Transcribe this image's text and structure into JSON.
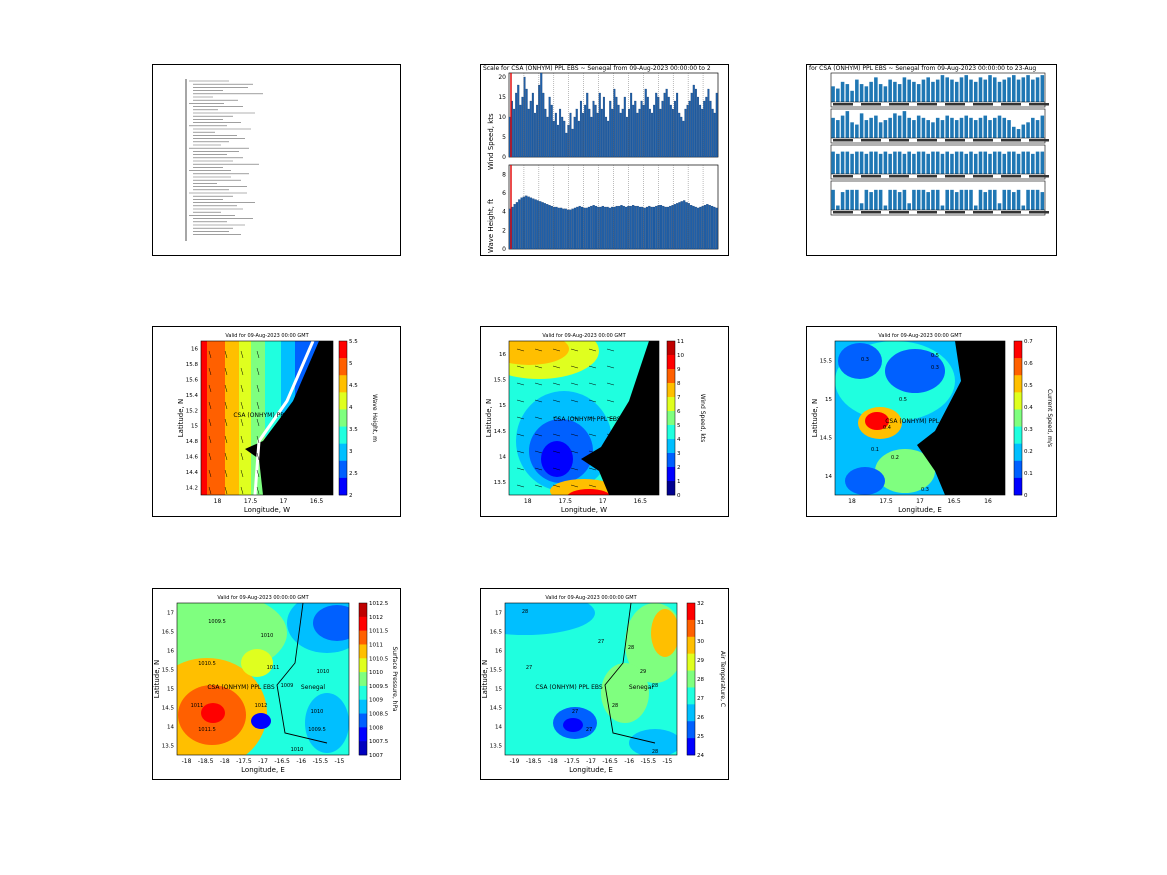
{
  "page": {
    "background": "#ffffff"
  },
  "panels": {
    "report": {
      "lines": [
        "~",
        "~",
        "~",
        "~",
        "~",
        "~",
        "~",
        "~",
        "~",
        "~",
        "~",
        "~",
        "~",
        "~",
        "~",
        "~",
        "~",
        "~",
        "~",
        "~",
        "~",
        "~",
        "~",
        "~",
        "~",
        "~",
        "~",
        "~",
        "~",
        "~",
        "~",
        "~",
        "~",
        "~",
        "~",
        "~",
        "~",
        "~",
        "~",
        "~",
        "~",
        "~",
        "~",
        "~",
        "~",
        "~",
        "~",
        "~",
        "~",
        "~"
      ]
    },
    "wind_wave": {
      "title": "Scale for CSA (ONHYM) PPL EBS ~ Senegal from 09-Aug-2023 00:00:00 to 2",
      "wind_ylabel": "Wind Speed, kts",
      "wave_ylabel": "Wave Height, ft"
    },
    "pressure_bars": {
      "title": "for CSA (ONHYM) PPL EBS ~ Senegal from 09-Aug-2023 00:00:00 to 23-Aug"
    },
    "wave_map": {
      "title": "Valid for 09-Aug-2023 00:00 GMT",
      "xlabel": "Longitude, W",
      "ylabel": "Latitude, N",
      "site_label": "CSA (ONHYM) PPL EBS",
      "colorbar_label": "Wave Height, m",
      "cbar_ticks": [
        "5.5",
        "5",
        "4.5",
        "4",
        "3.5",
        "3",
        "2.5",
        "2"
      ],
      "x_ticks": [
        "18",
        "17.5",
        "17",
        "16.5"
      ],
      "y_ticks": [
        "16",
        "15.8",
        "15.6",
        "15.4",
        "15.2",
        "15",
        "14.8",
        "14.6",
        "14.4",
        "14.2"
      ]
    },
    "wind_map": {
      "title": "Valid for 09-Aug-2023 00:00 GMT",
      "xlabel": "Longitude, W",
      "ylabel": "Latitude, N",
      "site_label": "CSA (ONHYM) PPL EBS",
      "colorbar_label": "Wind Speed, kts",
      "cbar_ticks": [
        "11",
        "10",
        "9",
        "8",
        "7",
        "6",
        "5",
        "4",
        "3",
        "2",
        "1",
        "0"
      ],
      "x_ticks": [
        "18",
        "17.5",
        "17",
        "16.5"
      ],
      "y_ticks": [
        "16",
        "15.5",
        "15",
        "14.5",
        "14",
        "13.5"
      ]
    },
    "current_map": {
      "title": "Valid for 09-Aug-2023 00:00 GMT",
      "xlabel": "Longitude, E",
      "ylabel": "Latitude, N",
      "site_label": "CSA (ONHYM) PPL E",
      "colorbar_label": "Current Speed, m/s",
      "cbar_ticks": [
        "0.7",
        "0.6",
        "0.5",
        "0.4",
        "0.3",
        "0.2",
        "0.1",
        "0"
      ],
      "x_ticks": [
        "18",
        "17.5",
        "17",
        "16.5",
        "16"
      ],
      "y_ticks": [
        "15.5",
        "15",
        "14.5",
        "14"
      ],
      "contour_labels": [
        "0.3",
        "0.5",
        "0.3",
        "0.5",
        "0.4",
        "0.2",
        "0.1",
        "0.3"
      ]
    },
    "pressure_map": {
      "title": "Valid for 09-Aug-2023 00:00:00 GMT",
      "xlabel": "Longitude, E",
      "ylabel": "Latitude, N",
      "site_label": "CSA (ONHYM) PPL EBS",
      "region_label": "Senegal",
      "colorbar_label": "Surface Pressure, hPa",
      "cbar_ticks": [
        "1012.5",
        "1012",
        "1011.5",
        "1011",
        "1010.5",
        "1010",
        "1009.5",
        "1009",
        "1008.5",
        "1008",
        "1007.5",
        "1007"
      ],
      "x_ticks": [
        "-18",
        "-18.5",
        "-18",
        "-17.5",
        "-17",
        "-16.5",
        "-16",
        "-15.5",
        "-15"
      ],
      "y_ticks": [
        "17",
        "16.5",
        "16",
        "15.5",
        "15",
        "14.5",
        "14",
        "13.5"
      ],
      "contour_labels": [
        "1009.5",
        "1010",
        "1010.5",
        "1011",
        "1010",
        "1009",
        "1011",
        "1011.5",
        "1010",
        "1012",
        "1009.5",
        "1010"
      ]
    },
    "temp_map": {
      "title": "Valid for 09-Aug-2023 00:00:00 GMT",
      "xlabel": "Longitude, E",
      "ylabel": "Latitude, N",
      "site_label": "CSA (ONHYM) PPL EBS",
      "region_label": "Senegal",
      "colorbar_label": "Air Temperature, C",
      "cbar_ticks": [
        "32",
        "31",
        "30",
        "29",
        "28",
        "27",
        "26",
        "25",
        "24"
      ],
      "x_ticks": [
        "-19",
        "-18.5",
        "-18",
        "-17.5",
        "-17",
        "-16.5",
        "-16",
        "-15.5",
        "-15"
      ],
      "y_ticks": [
        "17",
        "16.5",
        "16",
        "15.5",
        "15",
        "14.5",
        "14",
        "13.5"
      ],
      "contour_labels": [
        "28",
        "27",
        "27",
        "28",
        "29",
        "28",
        "27",
        "28",
        "27",
        "28"
      ]
    }
  },
  "chart_data": [
    {
      "type": "bar",
      "title": "Scale for CSA (ONHYM) PPL EBS ~ Senegal from 09-Aug-2023 00:00:00 to 2",
      "ylabel": "Wind Speed, kts",
      "ylim": [
        0,
        21
      ],
      "y_ticks": [
        0,
        5,
        10,
        15,
        20
      ],
      "values": [
        10,
        14,
        12,
        16,
        18,
        13,
        15,
        20,
        17,
        12,
        14,
        16,
        11,
        13,
        18,
        21,
        16,
        12,
        10,
        15,
        13,
        9,
        11,
        8,
        12,
        10,
        9,
        6,
        8,
        11,
        7,
        10,
        12,
        9,
        14,
        11,
        13,
        16,
        12,
        10,
        14,
        13,
        11,
        16,
        12,
        15,
        10,
        9,
        14,
        12,
        17,
        15,
        13,
        11,
        12,
        15,
        10,
        12,
        16,
        13,
        14,
        11,
        12,
        14,
        13,
        17,
        15,
        12,
        11,
        13,
        16,
        15,
        12,
        14,
        16,
        17,
        15,
        13,
        12,
        14,
        16,
        11,
        10,
        9,
        12,
        13,
        14,
        16,
        18,
        17,
        15,
        13,
        12,
        14,
        15,
        17,
        14,
        12,
        11,
        16
      ]
    },
    {
      "type": "bar",
      "ylabel": "Wave Height, ft",
      "ylim": [
        0,
        9
      ],
      "y_ticks": [
        0,
        2,
        4,
        6,
        8
      ],
      "values": [
        4.3,
        4.5,
        4.8,
        5.0,
        5.3,
        5.5,
        5.6,
        5.7,
        5.6,
        5.5,
        5.4,
        5.3,
        5.2,
        5.1,
        5.0,
        4.9,
        4.8,
        4.7,
        4.6,
        4.5,
        4.5,
        4.4,
        4.4,
        4.3,
        4.3,
        4.2,
        4.2,
        4.3,
        4.4,
        4.5,
        4.6,
        4.5,
        4.4,
        4.4,
        4.5,
        4.6,
        4.7,
        4.6,
        4.5,
        4.5,
        4.6,
        4.5,
        4.5,
        4.4,
        4.5,
        4.5,
        4.6,
        4.6,
        4.7,
        4.6,
        4.5,
        4.6,
        4.6,
        4.7,
        4.6,
        4.6,
        4.5,
        4.5,
        4.4,
        4.5,
        4.6,
        4.5,
        4.5,
        4.6,
        4.7,
        4.7,
        4.6,
        4.5,
        4.5,
        4.6,
        4.7,
        4.8,
        4.9,
        5.0,
        5.1,
        5.2,
        5.0,
        4.9,
        4.7,
        4.6,
        4.5,
        4.4,
        4.5,
        4.6,
        4.7,
        4.8,
        4.7,
        4.6,
        4.5,
        4.4
      ]
    },
    {
      "type": "bar",
      "title": "for CSA (ONHYM) PPL EBS ~ Senegal from 09-Aug-2023 00:00:00 to 23-Aug",
      "values": [
        7,
        6,
        9,
        8,
        5,
        10,
        8,
        7,
        9,
        11,
        8,
        7,
        10,
        9,
        8,
        11,
        10,
        9,
        8,
        10,
        11,
        9,
        10,
        12,
        11,
        10,
        9,
        11,
        12,
        10,
        9,
        11,
        10,
        12,
        11,
        9,
        10,
        11,
        12,
        10,
        11,
        12,
        10,
        11,
        12
      ]
    },
    {
      "type": "bar",
      "values": [
        9,
        8,
        10,
        12,
        7,
        6,
        11,
        8,
        9,
        10,
        7,
        8,
        9,
        11,
        10,
        12,
        9,
        8,
        10,
        9,
        8,
        7,
        9,
        8,
        10,
        9,
        8,
        9,
        10,
        9,
        8,
        9,
        10,
        8,
        9,
        10,
        9,
        8,
        5,
        4,
        6,
        7,
        9,
        8,
        10
      ]
    },
    {
      "type": "bar",
      "values": [
        10,
        9,
        10,
        10,
        9,
        10,
        10,
        9,
        10,
        10,
        9,
        10,
        9,
        10,
        10,
        9,
        10,
        9,
        10,
        10,
        9,
        10,
        10,
        9,
        10,
        9,
        10,
        10,
        9,
        10,
        9,
        10,
        10,
        9,
        10,
        10,
        9,
        10,
        10,
        9,
        10,
        10,
        9,
        10,
        10
      ]
    },
    {
      "type": "bar",
      "values": [
        9,
        2,
        8,
        9,
        9,
        9,
        3,
        9,
        8,
        9,
        9,
        2,
        9,
        9,
        8,
        9,
        3,
        9,
        9,
        9,
        8,
        9,
        9,
        2,
        9,
        9,
        8,
        9,
        9,
        9,
        2,
        9,
        8,
        9,
        9,
        3,
        9,
        9,
        8,
        9,
        2,
        9,
        9,
        9,
        8
      ]
    }
  ]
}
